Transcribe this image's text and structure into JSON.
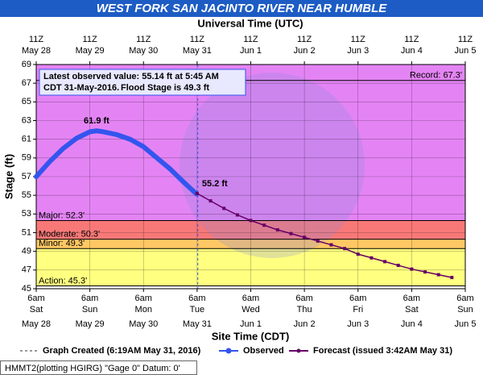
{
  "chart_data": {
    "type": "line",
    "title": "WEST FORK SAN JACINTO RIVER NEAR HUMBLE",
    "top_axis_label": "Universal Time (UTC)",
    "x_label": "Site Time (CDT)",
    "y_label": "Stage (ft)",
    "xlim": [
      0,
      192
    ],
    "xticks": [
      0,
      24,
      48,
      72,
      96,
      120,
      144,
      168,
      192
    ],
    "x_tick_times": [
      "6am",
      "6am",
      "6am",
      "6am",
      "6am",
      "6am",
      "6am",
      "6am",
      "6am"
    ],
    "x_tick_days": [
      "Sat",
      "Sun",
      "Mon",
      "Tue",
      "Wed",
      "Thu",
      "Fri",
      "Sat",
      "Sun"
    ],
    "x_tick_dates": [
      "May 28",
      "May 29",
      "May 30",
      "May 31",
      "Jun 1",
      "Jun 2",
      "Jun 3",
      "Jun 4",
      "Jun 5"
    ],
    "top_tick_times": [
      "11Z",
      "11Z",
      "11Z",
      "11Z",
      "11Z",
      "11Z",
      "11Z",
      "11Z",
      "11Z"
    ],
    "top_tick_dates": [
      "May 28",
      "May 29",
      "May 30",
      "May 31",
      "Jun 1",
      "Jun 2",
      "Jun 3",
      "Jun 4",
      "Jun 5"
    ],
    "ylim": [
      45,
      69
    ],
    "yticks": [
      45,
      47,
      49,
      51,
      53,
      55,
      57,
      59,
      61,
      63,
      65,
      67,
      69
    ],
    "grid": true,
    "thresholds": [
      {
        "label": "Action: 45.3'",
        "value": 45.3,
        "color": "#ffff80"
      },
      {
        "label": "Minor: 49.3'",
        "value": 49.3,
        "color": "#ffc864"
      },
      {
        "label": "Moderate: 50.3'",
        "value": 50.3,
        "color": "#f87878"
      },
      {
        "label": "Major: 52.3'",
        "value": 52.3,
        "color": "#e484f4"
      }
    ],
    "record": {
      "label": "Record: 67.3'",
      "value": 67.3
    },
    "created_x": 72.3,
    "note_lines": [
      "Latest observed value: 55.14 ft at 5:45 AM",
      "CDT 31-May-2016.",
      "Flood Stage is 49.3 ft"
    ],
    "series": [
      {
        "name": "Observed",
        "color": "#3355ee",
        "x": [
          0,
          6,
          12,
          18,
          24,
          27,
          30,
          36,
          42,
          48,
          54,
          60,
          66,
          71.75
        ],
        "values": [
          57.0,
          58.6,
          60.0,
          61.1,
          61.8,
          61.9,
          61.8,
          61.5,
          61.0,
          60.2,
          59.0,
          57.8,
          56.4,
          55.14
        ],
        "value_labels": [
          null,
          null,
          null,
          null,
          null,
          "61.9 ft",
          null,
          null,
          null,
          null,
          null,
          null,
          null,
          null
        ]
      },
      {
        "name": "Forecast (issued 3:42AM May 31)",
        "color": "#660066",
        "x": [
          72,
          78,
          84,
          90,
          96,
          102,
          108,
          114,
          120,
          126,
          132,
          138,
          144,
          150,
          156,
          162,
          168,
          174,
          180,
          186
        ],
        "values": [
          55.2,
          54.4,
          53.6,
          52.9,
          52.3,
          51.8,
          51.3,
          50.9,
          50.5,
          50.1,
          49.7,
          49.3,
          48.7,
          48.3,
          47.9,
          47.5,
          47.1,
          46.8,
          46.5,
          46.2
        ],
        "value_labels": [
          "55.2 ft",
          null,
          null,
          null,
          null,
          null,
          null,
          null,
          null,
          null,
          null,
          null,
          null,
          null,
          null,
          null,
          null,
          null,
          null,
          null
        ]
      }
    ],
    "legend_created": "Graph Created (6:19AM May 31, 2016)",
    "footer": "HMMT2(plotting HGIRG) \"Gage 0\" Datum: 0'"
  }
}
